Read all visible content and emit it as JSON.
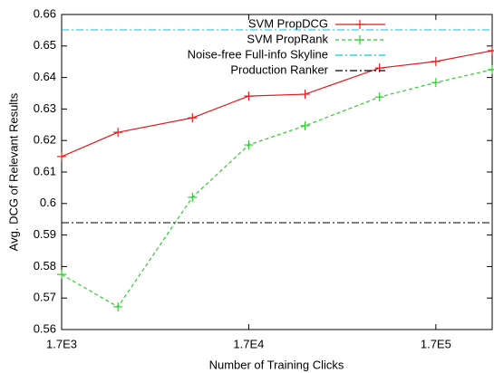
{
  "chart_data": {
    "type": "line",
    "x_label": "Number of Training Clicks",
    "y_label": "Avg. DCG of Relevant Results",
    "x": [
      1700,
      3400,
      8500,
      17000,
      34000,
      85000,
      170000,
      340000
    ],
    "series": [
      {
        "name": "SVM PropDCG",
        "color": "#e41a1c",
        "values": [
          0.6149,
          0.6226,
          0.6272,
          0.6341,
          0.6347,
          0.643,
          0.6451,
          0.6485
        ]
      },
      {
        "name": "SVM PropRank",
        "color": "#2ecc2e",
        "dash": "4,3",
        "values": [
          0.5775,
          0.5672,
          0.602,
          0.6186,
          0.6247,
          0.6338,
          0.6384,
          0.6425
        ]
      }
    ],
    "hlines": [
      {
        "name": "Noise-free Full-info Skyline",
        "color": "#00c8d8",
        "dash": "8,3,2,3",
        "value": 0.6551
      },
      {
        "name": "Production Ranker",
        "color": "#000000",
        "dash": "8,3,2,3",
        "value": 0.5939
      }
    ],
    "xlog": true,
    "xlim": [
      1700,
      340000
    ],
    "xticks": [
      {
        "value": 1700,
        "label": "1.7E3"
      },
      {
        "value": 17000,
        "label": "1.7E4"
      },
      {
        "value": 170000,
        "label": "1.7E5"
      }
    ],
    "ylim": [
      0.56,
      0.66
    ],
    "yticks": [
      0.56,
      0.57,
      0.58,
      0.59,
      0.6,
      0.61,
      0.62,
      0.63,
      0.64,
      0.65,
      0.66
    ],
    "legend": "top-right"
  }
}
